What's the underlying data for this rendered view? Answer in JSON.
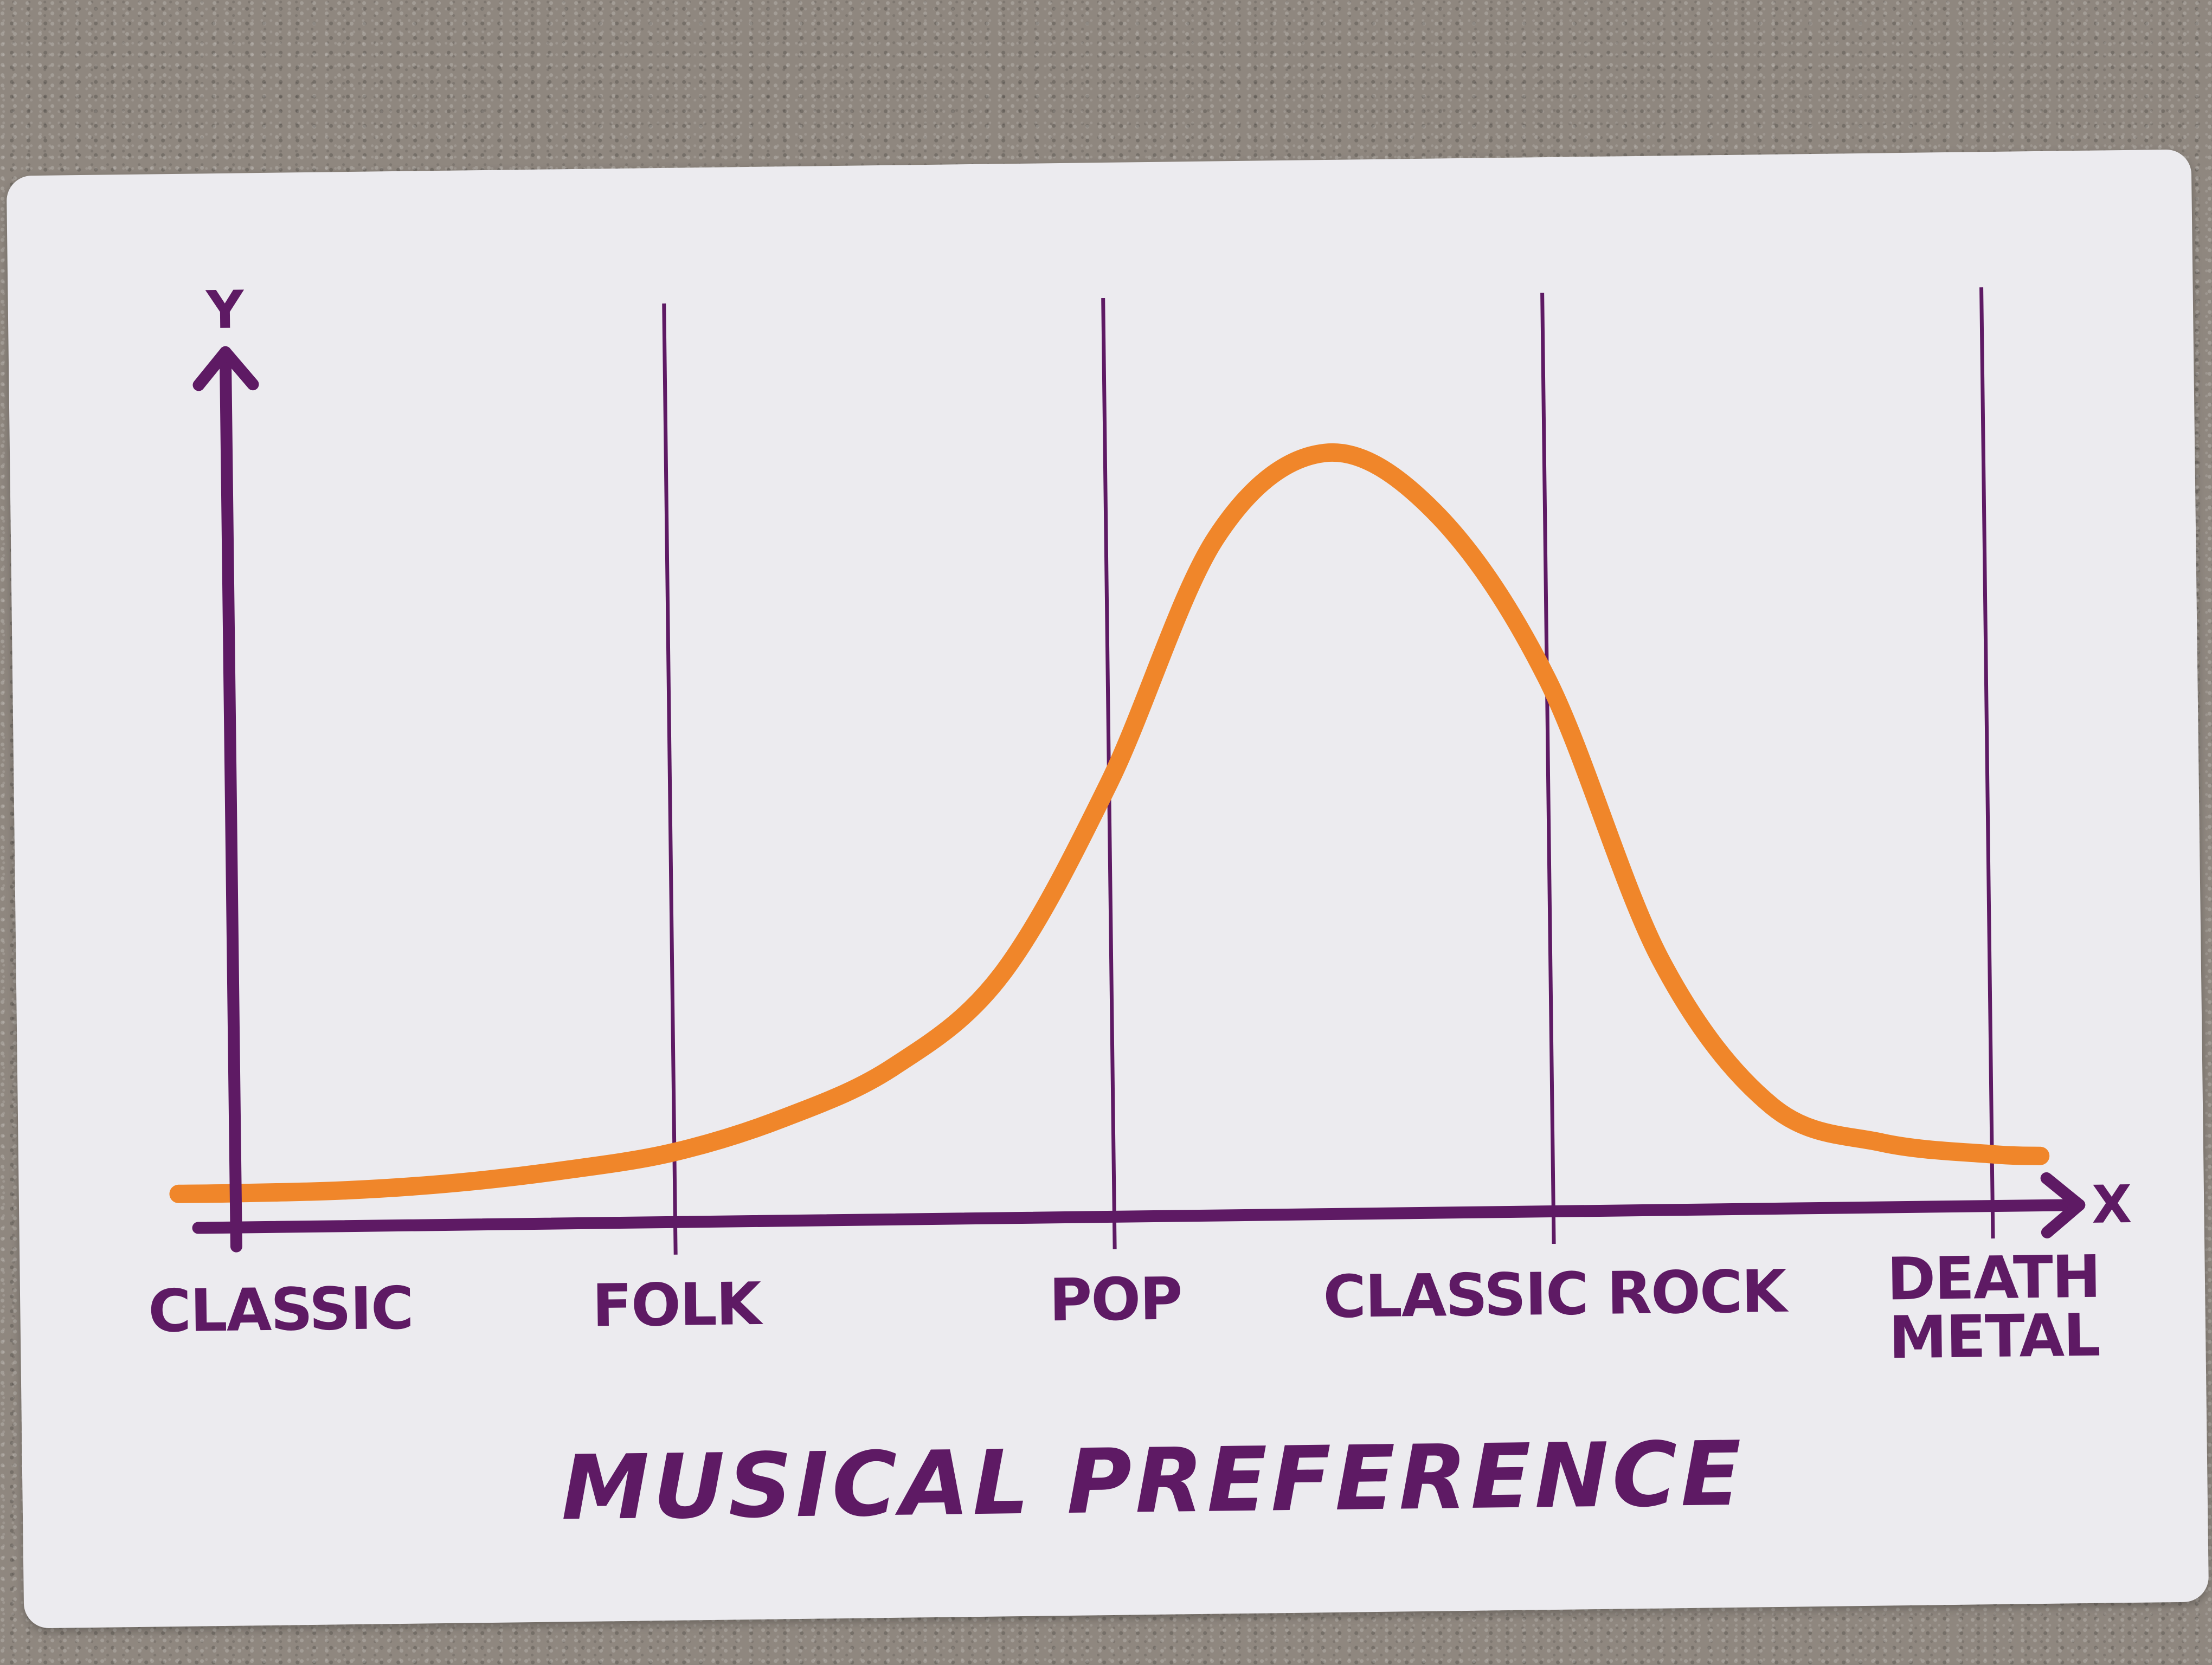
{
  "chart_data": {
    "type": "line",
    "title": "MUSICAL PREFERENCE",
    "xlabel": "X",
    "ylabel": "Y",
    "categories": [
      "CLASSIC",
      "FOLK",
      "POP",
      "CLASSIC ROCK",
      "DEATH METAL"
    ],
    "category_lines": [
      false,
      true,
      true,
      true,
      true
    ],
    "x": [
      -0.13,
      0,
      0.25,
      0.5,
      0.75,
      1,
      1.25,
      1.5,
      1.75,
      2,
      2.25,
      2.5,
      2.75,
      3,
      3.25,
      3.5,
      3.75,
      4,
      4.11
    ],
    "y": [
      0.045,
      0.045,
      0.047,
      0.055,
      0.07,
      0.092,
      0.135,
      0.2,
      0.32,
      0.57,
      0.89,
      1.0,
      0.92,
      0.7,
      0.33,
      0.135,
      0.085,
      0.068,
      0.065
    ],
    "xlim": [
      -0.15,
      4.2
    ],
    "ylim": [
      0,
      1.15
    ],
    "grid": false,
    "colors": {
      "curve": "#f0862a",
      "axes": "#5e1a64",
      "card": "#ecebef"
    }
  }
}
